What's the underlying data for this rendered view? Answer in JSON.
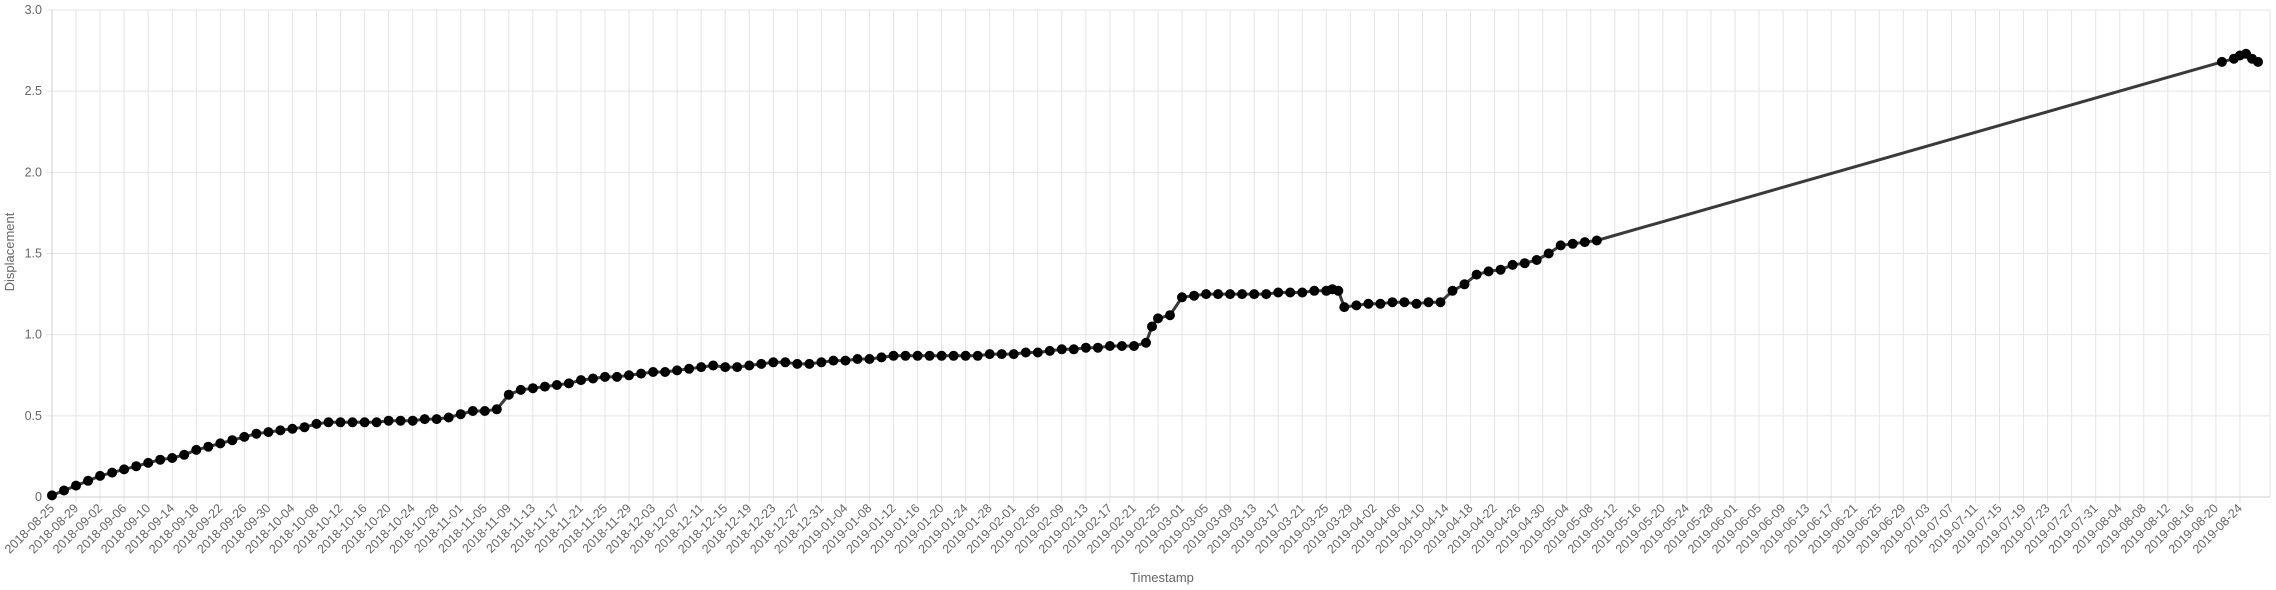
{
  "chart_data": {
    "type": "line",
    "xlabel": "Timestamp",
    "ylabel": "Displacement",
    "ylim": [
      0,
      3.0
    ],
    "y_ticks": [
      "0",
      "0.5",
      "1.0",
      "1.5",
      "2.0",
      "2.5",
      "3.0"
    ],
    "grid": true,
    "legend": "none",
    "colors": {
      "line": "#3a3a3a",
      "points": "#000000",
      "grid": "#e4e4e4",
      "text": "#666666"
    },
    "categories": [
      "2018-08-25",
      "2018-08-29",
      "2018-09-02",
      "2018-09-06",
      "2018-09-10",
      "2018-09-14",
      "2018-09-18",
      "2018-09-22",
      "2018-09-26",
      "2018-09-30",
      "2018-10-04",
      "2018-10-08",
      "2018-10-12",
      "2018-10-16",
      "2018-10-20",
      "2018-10-24",
      "2018-10-28",
      "2018-11-01",
      "2018-11-05",
      "2018-11-09",
      "2018-11-13",
      "2018-11-17",
      "2018-11-21",
      "2018-11-25",
      "2018-11-29",
      "2018-12-03",
      "2018-12-07",
      "2018-12-11",
      "2018-12-15",
      "2018-12-19",
      "2018-12-23",
      "2018-12-27",
      "2018-12-31",
      "2019-01-04",
      "2019-01-08",
      "2019-01-12",
      "2019-01-16",
      "2019-01-20",
      "2019-01-24",
      "2019-01-28",
      "2019-02-01",
      "2019-02-05",
      "2019-02-09",
      "2019-02-13",
      "2019-02-17",
      "2019-02-21",
      "2019-02-25",
      "2019-03-01",
      "2019-03-05",
      "2019-03-09",
      "2019-03-13",
      "2019-03-17",
      "2019-03-21",
      "2019-03-25",
      "2019-03-29",
      "2019-04-02",
      "2019-04-06",
      "2019-04-10",
      "2019-04-14",
      "2019-04-18",
      "2019-04-22",
      "2019-04-26",
      "2019-04-30",
      "2019-05-04",
      "2019-05-08",
      "2019-05-12",
      "2019-05-16",
      "2019-05-20",
      "2019-05-24",
      "2019-05-28",
      "2019-06-01",
      "2019-06-05",
      "2019-06-09",
      "2019-06-13",
      "2019-06-17",
      "2019-06-21",
      "2019-06-25",
      "2019-06-29",
      "2019-07-03",
      "2019-07-07",
      "2019-07-11",
      "2019-07-15",
      "2019-07-19",
      "2019-07-23",
      "2019-07-27",
      "2019-07-31",
      "2019-08-04",
      "2019-08-08",
      "2019-08-12",
      "2019-08-16",
      "2019-08-20",
      "2019-08-24"
    ],
    "series": [
      {
        "x": [
          "2018-08-25",
          "2018-08-27",
          "2018-08-29",
          "2018-08-31",
          "2018-09-02",
          "2018-09-04",
          "2018-09-06",
          "2018-09-08",
          "2018-09-10",
          "2018-09-12",
          "2018-09-14",
          "2018-09-16",
          "2018-09-18",
          "2018-09-20",
          "2018-09-22",
          "2018-09-24",
          "2018-09-26",
          "2018-09-28",
          "2018-09-30",
          "2018-10-02",
          "2018-10-04",
          "2018-10-06",
          "2018-10-08",
          "2018-10-10",
          "2018-10-12",
          "2018-10-14",
          "2018-10-16",
          "2018-10-18",
          "2018-10-20",
          "2018-10-22",
          "2018-10-24",
          "2018-10-26",
          "2018-10-28",
          "2018-10-30",
          "2018-11-01",
          "2018-11-03",
          "2018-11-05",
          "2018-11-07",
          "2018-11-09",
          "2018-11-11",
          "2018-11-13",
          "2018-11-15",
          "2018-11-17",
          "2018-11-19",
          "2018-11-21",
          "2018-11-23",
          "2018-11-25",
          "2018-11-27",
          "2018-11-29",
          "2018-12-01",
          "2018-12-03",
          "2018-12-05",
          "2018-12-07",
          "2018-12-09",
          "2018-12-11",
          "2018-12-13",
          "2018-12-15",
          "2018-12-17",
          "2018-12-19",
          "2018-12-21",
          "2018-12-23",
          "2018-12-25",
          "2018-12-27",
          "2018-12-29",
          "2018-12-31",
          "2019-01-02",
          "2019-01-04",
          "2019-01-06",
          "2019-01-08",
          "2019-01-10",
          "2019-01-12",
          "2019-01-14",
          "2019-01-16",
          "2019-01-18",
          "2019-01-20",
          "2019-01-22",
          "2019-01-24",
          "2019-01-26",
          "2019-01-28",
          "2019-01-30",
          "2019-02-01",
          "2019-02-03",
          "2019-02-05",
          "2019-02-07",
          "2019-02-09",
          "2019-02-11",
          "2019-02-13",
          "2019-02-15",
          "2019-02-17",
          "2019-02-19",
          "2019-02-21",
          "2019-02-23",
          "2019-02-24",
          "2019-02-25",
          "2019-02-27",
          "2019-03-01",
          "2019-03-03",
          "2019-03-05",
          "2019-03-07",
          "2019-03-09",
          "2019-03-11",
          "2019-03-13",
          "2019-03-15",
          "2019-03-17",
          "2019-03-19",
          "2019-03-21",
          "2019-03-23",
          "2019-03-25",
          "2019-03-26",
          "2019-03-27",
          "2019-03-28",
          "2019-03-30",
          "2019-04-01",
          "2019-04-03",
          "2019-04-05",
          "2019-04-07",
          "2019-04-09",
          "2019-04-11",
          "2019-04-13",
          "2019-04-15",
          "2019-04-17",
          "2019-04-19",
          "2019-04-21",
          "2019-04-23",
          "2019-04-25",
          "2019-04-27",
          "2019-04-29",
          "2019-05-01",
          "2019-05-03",
          "2019-05-05",
          "2019-05-07",
          "2019-05-09",
          "2019-08-21",
          "2019-08-23",
          "2019-08-24",
          "2019-08-25",
          "2019-08-26",
          "2019-08-27"
        ],
        "y": [
          0.01,
          0.04,
          0.07,
          0.1,
          0.13,
          0.15,
          0.17,
          0.19,
          0.21,
          0.23,
          0.24,
          0.26,
          0.29,
          0.31,
          0.33,
          0.35,
          0.37,
          0.39,
          0.4,
          0.41,
          0.42,
          0.43,
          0.45,
          0.46,
          0.46,
          0.46,
          0.46,
          0.46,
          0.47,
          0.47,
          0.47,
          0.48,
          0.48,
          0.49,
          0.51,
          0.53,
          0.53,
          0.54,
          0.63,
          0.66,
          0.67,
          0.68,
          0.69,
          0.7,
          0.72,
          0.73,
          0.74,
          0.74,
          0.75,
          0.76,
          0.77,
          0.77,
          0.78,
          0.79,
          0.8,
          0.81,
          0.8,
          0.8,
          0.81,
          0.82,
          0.83,
          0.83,
          0.82,
          0.82,
          0.83,
          0.84,
          0.84,
          0.85,
          0.85,
          0.86,
          0.87,
          0.87,
          0.87,
          0.87,
          0.87,
          0.87,
          0.87,
          0.87,
          0.88,
          0.88,
          0.88,
          0.89,
          0.89,
          0.9,
          0.91,
          0.91,
          0.92,
          0.92,
          0.93,
          0.93,
          0.93,
          0.95,
          1.05,
          1.1,
          1.12,
          1.23,
          1.24,
          1.25,
          1.25,
          1.25,
          1.25,
          1.25,
          1.25,
          1.26,
          1.26,
          1.26,
          1.27,
          1.27,
          1.28,
          1.27,
          1.17,
          1.18,
          1.19,
          1.19,
          1.2,
          1.2,
          1.19,
          1.2,
          1.2,
          1.27,
          1.31,
          1.37,
          1.39,
          1.4,
          1.43,
          1.44,
          1.46,
          1.5,
          1.55,
          1.56,
          1.57,
          1.58,
          2.68,
          2.7,
          2.72,
          2.73,
          2.7,
          2.68
        ]
      }
    ]
  }
}
